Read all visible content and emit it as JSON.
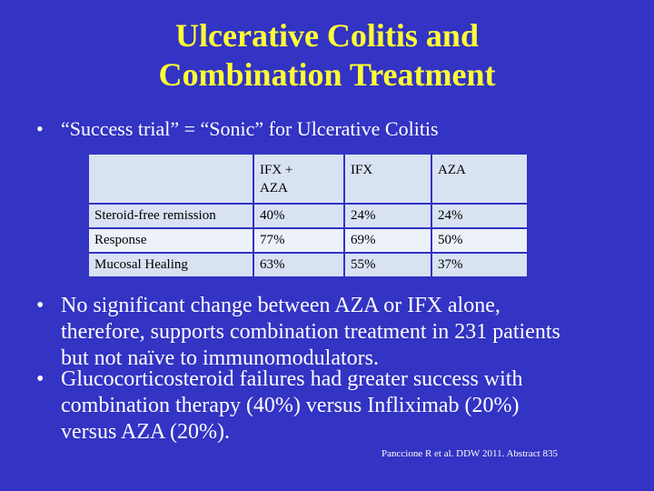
{
  "slide": {
    "title_line1": "Ulcerative Colitis and",
    "title_line2": "Combination Treatment",
    "bullet_marker": "•",
    "intro_bullet": "“Success trial” = “Sonic” for Ulcerative Colitis",
    "colors": {
      "background": "#3333c4",
      "title": "#ffff33",
      "body_text": "#ffffff",
      "table_dark_row": "#d8e2f2",
      "table_light_row": "#edf1f9"
    }
  },
  "table": {
    "headers": {
      "corner": "",
      "combo_line1": "IFX +",
      "combo_line2": "AZA",
      "ifx": "IFX",
      "aza": "AZA"
    },
    "rows": [
      {
        "label": "Steroid-free remission",
        "combo": "40%",
        "ifx": "24%",
        "aza": "24%"
      },
      {
        "label": "Response",
        "combo": "77%",
        "ifx": "69%",
        "aza": "50%"
      },
      {
        "label": "Mucosal Healing",
        "combo": "63%",
        "ifx": "55%",
        "aza": "37%"
      }
    ]
  },
  "conclusions": {
    "bullet1_lines": [
      "No significant change between AZA or IFX alone,",
      "therefore, supports combination treatment in 231 patients",
      "but not naïve to immunomodulators."
    ],
    "bullet2_lines": [
      "Glucocorticosteroid failures had greater success with",
      "combination therapy (40%) versus Infliximab (20%)",
      "versus AZA (20%)."
    ]
  },
  "citation": "Panccione R et al. DDW 2011. Abstract 835"
}
